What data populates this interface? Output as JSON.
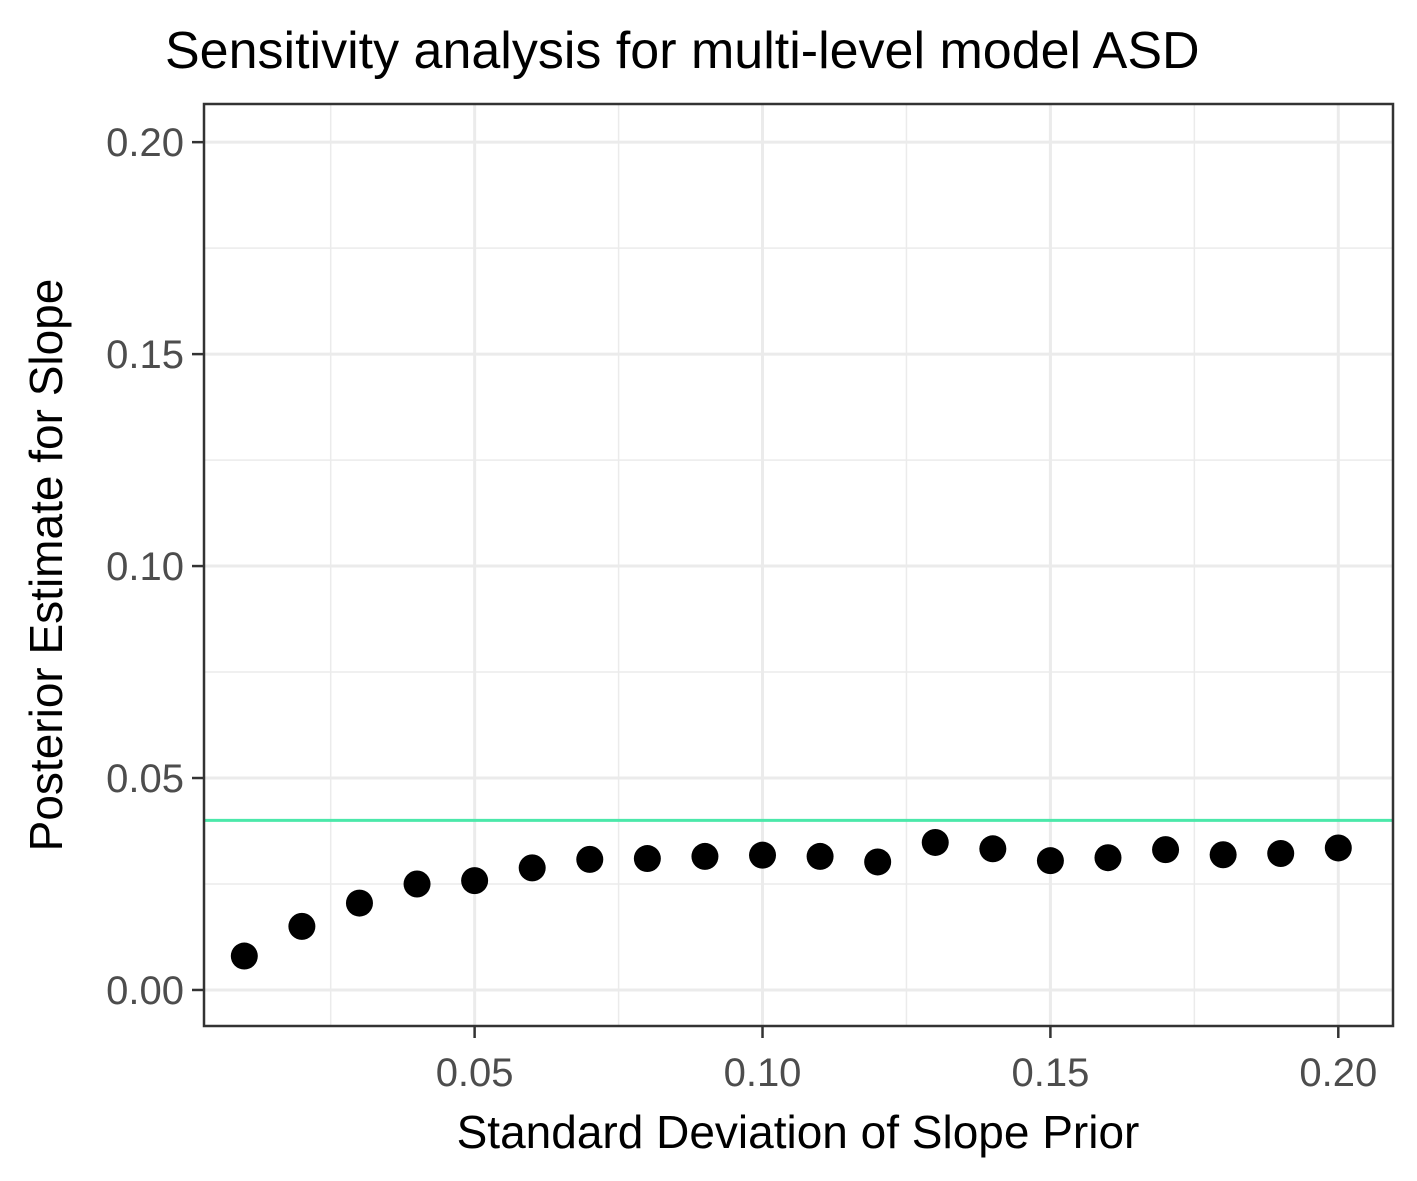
{
  "chart_data": {
    "type": "scatter",
    "title": "Sensitivity analysis for multi-level model ASD",
    "xlabel": "Standard Deviation of Slope Prior",
    "ylabel": "Posterior Estimate for Slope",
    "xlim": [
      0.003,
      0.2095
    ],
    "ylim": [
      -0.0085,
      0.209
    ],
    "x_ticks": [
      0.05,
      0.1,
      0.15,
      0.2
    ],
    "x_tick_labels": [
      "0.05",
      "0.10",
      "0.15",
      "0.20"
    ],
    "y_ticks": [
      0.0,
      0.05,
      0.1,
      0.15,
      0.2
    ],
    "y_tick_labels": [
      "0.00",
      "0.05",
      "0.10",
      "0.15",
      "0.20"
    ],
    "grid": true,
    "legend": "none",
    "series": [
      {
        "x": [
          0.01,
          0.02,
          0.03,
          0.04,
          0.05,
          0.06,
          0.07,
          0.08,
          0.09,
          0.1,
          0.11,
          0.12,
          0.13,
          0.14,
          0.15,
          0.16,
          0.17,
          0.18,
          0.19,
          0.2
        ],
        "y": [
          0.008,
          0.015,
          0.0205,
          0.025,
          0.0258,
          0.0288,
          0.0308,
          0.031,
          0.0315,
          0.0318,
          0.0315,
          0.0302,
          0.0348,
          0.0333,
          0.0305,
          0.0312,
          0.0331,
          0.0319,
          0.0322,
          0.0335
        ],
        "color": "#000000"
      }
    ],
    "reference_line": {
      "orientation": "horizontal",
      "y": 0.04,
      "color": "#4be8aa"
    }
  }
}
